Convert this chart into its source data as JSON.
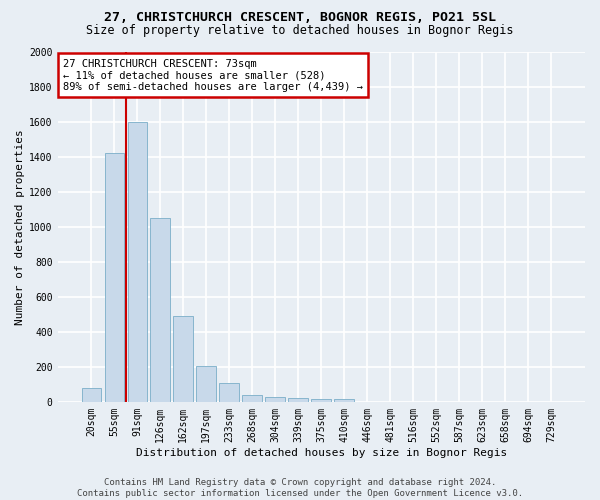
{
  "title": "27, CHRISTCHURCH CRESCENT, BOGNOR REGIS, PO21 5SL",
  "subtitle": "Size of property relative to detached houses in Bognor Regis",
  "xlabel": "Distribution of detached houses by size in Bognor Regis",
  "ylabel": "Number of detached properties",
  "categories": [
    "20sqm",
    "55sqm",
    "91sqm",
    "126sqm",
    "162sqm",
    "197sqm",
    "233sqm",
    "268sqm",
    "304sqm",
    "339sqm",
    "375sqm",
    "410sqm",
    "446sqm",
    "481sqm",
    "516sqm",
    "552sqm",
    "587sqm",
    "623sqm",
    "658sqm",
    "694sqm",
    "729sqm"
  ],
  "values": [
    80,
    1420,
    1600,
    1050,
    490,
    205,
    105,
    38,
    30,
    22,
    18,
    15,
    0,
    0,
    0,
    0,
    0,
    0,
    0,
    0,
    0
  ],
  "bar_color": "#c8d9ea",
  "bar_edge_color": "#7aaec8",
  "vline_x": 1.5,
  "vline_color": "#cc0000",
  "annotation_text": "27 CHRISTCHURCH CRESCENT: 73sqm\n← 11% of detached houses are smaller (528)\n89% of semi-detached houses are larger (4,439) →",
  "annotation_box_facecolor": "#ffffff",
  "annotation_box_edgecolor": "#cc0000",
  "ylim": [
    0,
    2000
  ],
  "yticks": [
    0,
    200,
    400,
    600,
    800,
    1000,
    1200,
    1400,
    1600,
    1800,
    2000
  ],
  "background_color": "#e8eef4",
  "grid_color": "#ffffff",
  "footer": "Contains HM Land Registry data © Crown copyright and database right 2024.\nContains public sector information licensed under the Open Government Licence v3.0."
}
